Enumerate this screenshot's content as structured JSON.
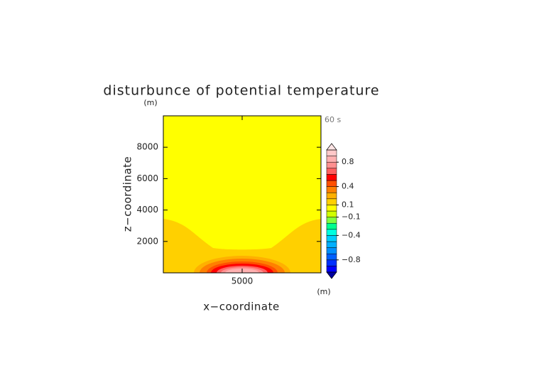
{
  "chart_data": {
    "type": "contour",
    "title": "disturbunce of potential temperature",
    "time_label": "60 s",
    "xlabel": "x−coordinate",
    "ylabel": "z−coordinate",
    "xunit": "(m)",
    "yunit": "(m)",
    "xlim": [
      0,
      10000
    ],
    "ylim": [
      0,
      10000
    ],
    "xticks": [
      5000
    ],
    "yticks": [
      2000,
      4000,
      6000,
      8000
    ],
    "colorbar": {
      "levels": [
        -1.0,
        -0.9,
        -0.8,
        -0.7,
        -0.6,
        -0.5,
        -0.4,
        -0.3,
        -0.2,
        -0.1,
        0,
        0.1,
        0.2,
        0.3,
        0.4,
        0.5,
        0.6,
        0.7,
        0.8,
        0.9,
        1.0
      ],
      "colors": [
        "#0000a0",
        "#0000ff",
        "#0030ff",
        "#0060ff",
        "#0090ff",
        "#00b0ff",
        "#00d0ff",
        "#00ffe0",
        "#00ff90",
        "#80ff40",
        "#d0ff00",
        "#ffff00",
        "#ffd000",
        "#ffb000",
        "#ff8000",
        "#ff5000",
        "#ff0000",
        "#ff6060",
        "#ff9090",
        "#ffb0b0",
        "#ffc8c8",
        "#ffe4e4"
      ],
      "ticks": [
        0.8,
        0.4,
        0.1,
        {
          "value": -0.1,
          "label": "−0.1"
        },
        {
          "value": -0.4,
          "label": "−0.4"
        },
        {
          "value": -0.8,
          "label": "−0.8"
        }
      ]
    }
  }
}
